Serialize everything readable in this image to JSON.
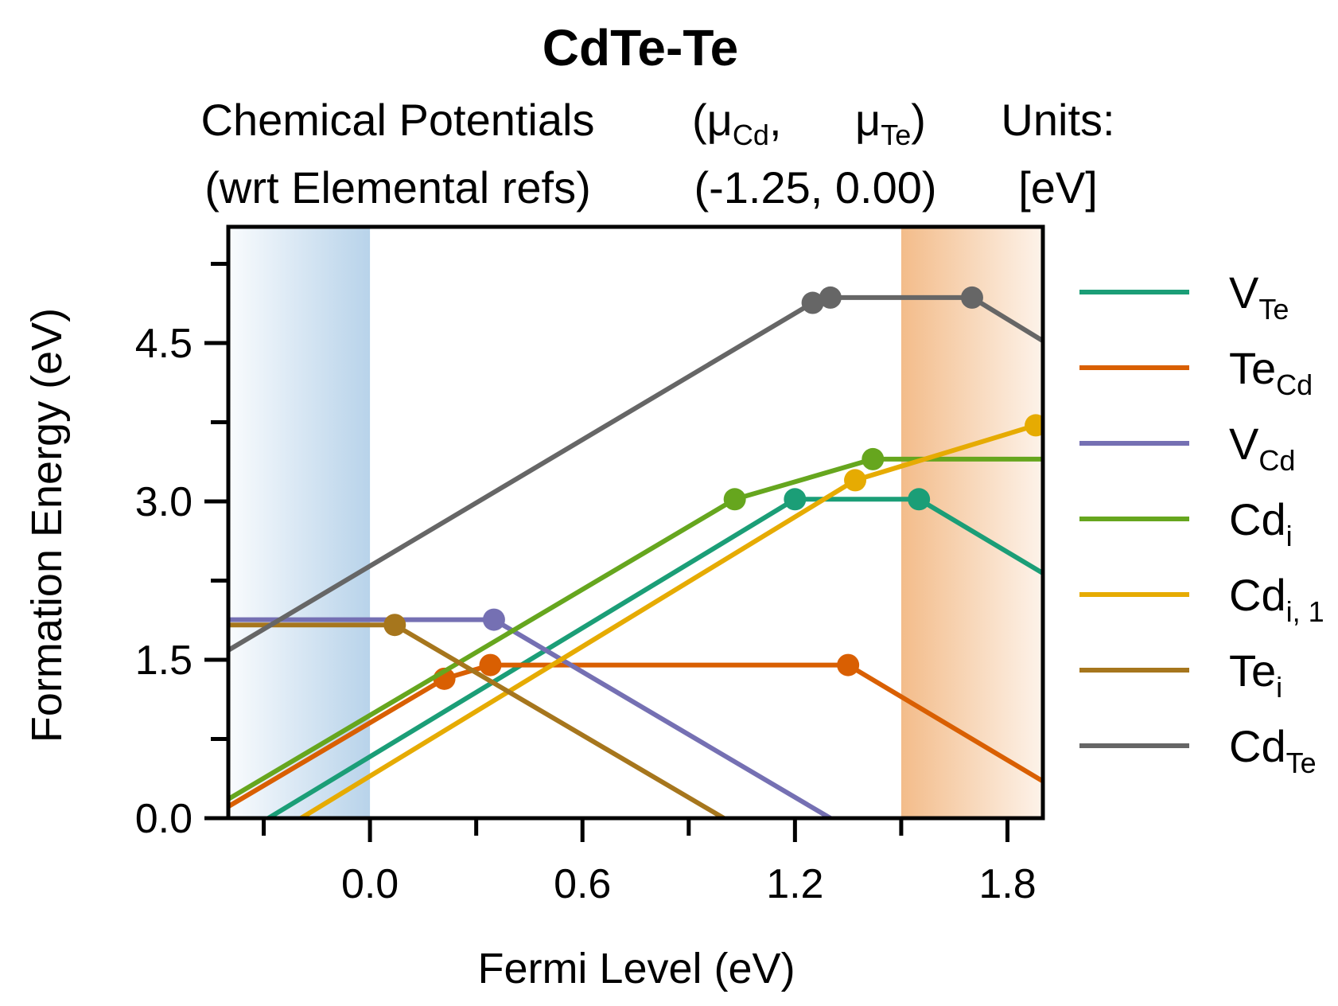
{
  "chart_data": {
    "type": "line",
    "title": "CdTe-Te",
    "header": {
      "left_line1": "Chemical Potentials",
      "left_line2": "(wrt Elemental refs)",
      "mu_open": "(μ",
      "mu_cd_sub": "Cd",
      "mu_sep": ",",
      "mu_te": "μ",
      "mu_te_sub": "Te",
      "mu_close": ")",
      "values": "(-1.25, 0.00)",
      "units_line1": "Units:",
      "units_line2": "[eV]"
    },
    "xlabel": "Fermi Level (eV)",
    "ylabel": "Formation Energy (eV)",
    "xlim": [
      -0.4,
      1.9
    ],
    "ylim": [
      0.0,
      5.6
    ],
    "xticks": [
      0.0,
      0.6,
      1.2,
      1.8
    ],
    "xtick_labels": [
      "0.0",
      "0.6",
      "1.2",
      "1.8"
    ],
    "xminor": [
      -0.3,
      0.3,
      0.9,
      1.5
    ],
    "yticks": [
      0.0,
      1.5,
      3.0,
      4.5
    ],
    "ytick_labels": [
      "0.0",
      "1.5",
      "3.0",
      "4.5"
    ],
    "yminor": [
      0.75,
      2.25,
      3.75,
      5.25
    ],
    "vbm_region": {
      "from": -0.4,
      "to": 0.0,
      "color": "#b8d3ea"
    },
    "cbm_region": {
      "from": 1.5,
      "to": 1.9,
      "color": "#f3bc8a"
    },
    "grid": false,
    "legend_position": "right",
    "series": [
      {
        "base": "V",
        "sub": "Te",
        "color": "#1b9e77",
        "points": [
          [
            -0.4,
            -0.23
          ],
          [
            1.2,
            3.02
          ],
          [
            1.55,
            3.02
          ],
          [
            1.9,
            2.32
          ]
        ],
        "markers": [
          [
            1.2,
            3.02
          ],
          [
            1.55,
            3.02
          ]
        ]
      },
      {
        "base": "Te",
        "sub": "Cd",
        "color": "#d95f02",
        "points": [
          [
            -0.4,
            0.11
          ],
          [
            0.21,
            1.32
          ],
          [
            0.34,
            1.45
          ],
          [
            1.35,
            1.45
          ],
          [
            1.9,
            0.35
          ]
        ],
        "markers": [
          [
            0.21,
            1.32
          ],
          [
            0.34,
            1.45
          ],
          [
            1.35,
            1.45
          ]
        ]
      },
      {
        "base": "V",
        "sub": "Cd",
        "color": "#7570b3",
        "points": [
          [
            -0.4,
            1.88
          ],
          [
            0.35,
            1.88
          ],
          [
            1.3,
            0.0
          ]
        ],
        "markers": [
          [
            0.35,
            1.88
          ]
        ]
      },
      {
        "base": "Cd",
        "sub": "i",
        "color": "#66a61e",
        "points": [
          [
            -0.4,
            0.18
          ],
          [
            1.03,
            3.02
          ],
          [
            1.42,
            3.4
          ],
          [
            1.9,
            3.4
          ]
        ],
        "markers": [
          [
            1.03,
            3.02
          ],
          [
            1.42,
            3.4
          ]
        ]
      },
      {
        "base": "Cd",
        "sub": "i, 1",
        "color": "#e6ab02",
        "points": [
          [
            -0.4,
            -0.42
          ],
          [
            1.37,
            3.2
          ],
          [
            1.88,
            3.72
          ]
        ],
        "markers": [
          [
            1.37,
            3.2
          ],
          [
            1.88,
            3.72
          ]
        ]
      },
      {
        "base": "Te",
        "sub": "i",
        "color": "#a6761d",
        "points": [
          [
            -0.4,
            1.83
          ],
          [
            0.07,
            1.83
          ],
          [
            1.05,
            -0.1
          ]
        ],
        "markers": [
          [
            0.07,
            1.83
          ]
        ]
      },
      {
        "base": "Cd",
        "sub": "Te",
        "color": "#666666",
        "points": [
          [
            -0.4,
            1.59
          ],
          [
            1.25,
            4.88
          ],
          [
            1.3,
            4.93
          ],
          [
            1.7,
            4.93
          ],
          [
            1.9,
            4.52
          ]
        ],
        "markers": [
          [
            1.25,
            4.88
          ],
          [
            1.3,
            4.93
          ],
          [
            1.7,
            4.93
          ]
        ]
      }
    ]
  }
}
